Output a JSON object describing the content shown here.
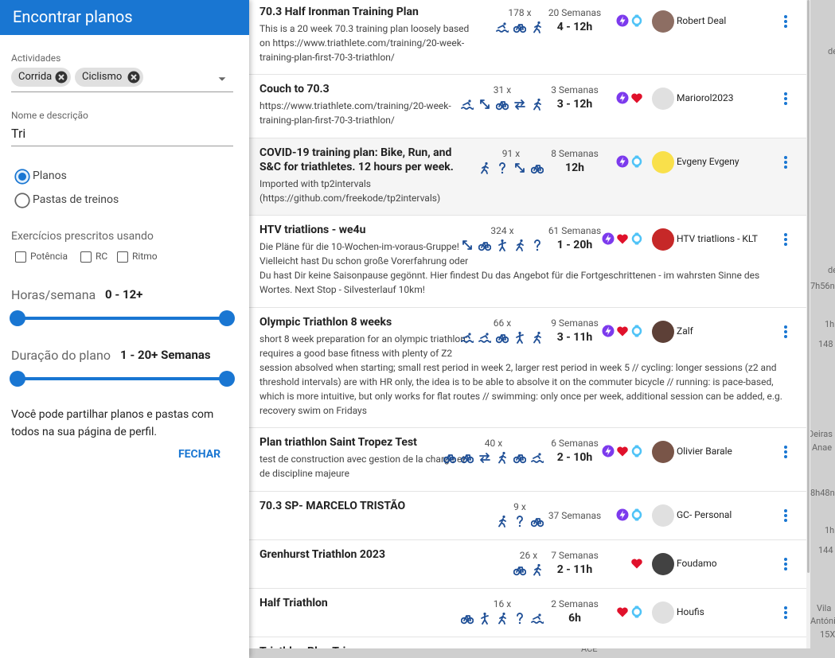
{
  "sidebar": {
    "title": "Encontrar planos",
    "activities_label": "Actividades",
    "chips": [
      "Corrida",
      "Ciclismo"
    ],
    "name_label": "Nome e descrição",
    "name_value": "Tri",
    "radios": [
      "Planos",
      "Pastas de treinos"
    ],
    "prescribed_label": "Exercícios prescritos usando",
    "checkboxes": [
      "Potência",
      "RC",
      "Ritmo"
    ],
    "hours_label": "Horas/semana",
    "hours_value": "0 - 12+",
    "duration_label": "Duração do plano",
    "duration_value": "1 - 20+ Semanas",
    "note": "Você pode partilhar planos e pastas com todos na sua página de perfil.",
    "close_button": "FECHAR"
  },
  "plans": [
    {
      "title": "70.3 Half Ironman Training Plan",
      "description": "This is a 20 week 70.3 training plan loosely based on https://www.triathlete.com/training/20-week-training-plan-first-70-3-triathlon/",
      "count": "178 x",
      "weeks": "20 Semanas",
      "hours": "4 - 12h",
      "author": "Robert Deal"
    },
    {
      "title": "Couch to 70.3",
      "description": "https://www.triathlete.com/training/20-week-training-plan-first-70-3-triathlon/",
      "count": "31 x",
      "weeks": "3 Semanas",
      "hours": "3 - 12h",
      "author": "Mariorol2023"
    },
    {
      "title": "COVID-19 training plan: Bike, Run, and S&C for triathletes. 12 hours per week.",
      "description": "Imported with tp2intervals (https://github.com/freekode/tp2intervals)",
      "count": "91 x",
      "weeks": "8 Semanas",
      "hours": "12h",
      "author": "Evgeny Evgeny"
    },
    {
      "title": "HTV triatlions - we4u",
      "description": "Die Pläne für die 10-Wochen-im-voraus-Gruppe! Vielleicht hast Du schon große Vorerfahrung oder Du hast Dir keine Saisonpause gegönnt. Hier findest Du das Angebot für die Fortgeschrittenen - im wahrsten Sinne des Wortes. Next Stop - Silvesterlauf 10km!",
      "count": "324 x",
      "weeks": "61 Semanas",
      "hours": "1 - 20h",
      "author": "HTV triatlions - KLT"
    },
    {
      "title": "Olympic Triathlon 8 weeks",
      "description": "short 8 week preparation for an olympic triathlon; requires a good base fitness with plenty of Z2 session absolved when starting; small rest period in week 2, larger rest period in week 5 // cycling: longer sessions (z2 and threshold intervals) are with HR only, the idea is to be able to absolve it on the commuter bicycle // running: is pace-based, which is more intuitive, but only works for flat routes // swimming: only once per week, additional session can be added, e.g. recovery swim on Fridays",
      "count": "66 x",
      "weeks": "9 Semanas",
      "hours": "3 - 11h",
      "author": "Zalf"
    },
    {
      "title": "Plan triathlon Saint Tropez Test",
      "description": "test de construction avec gestion de la charge et de discipline majeure",
      "count": "40 x",
      "weeks": "6 Semanas",
      "hours": "2 - 10h",
      "author": "Olivier Barale"
    },
    {
      "title": "70.3 SP- MARCELO TRISTÃO",
      "count": "9 x",
      "weeks": "37 Semanas",
      "author": "GC- Personal"
    },
    {
      "title": "Grenhurst Triathlon 2023",
      "count": "26 x",
      "weeks": "7 Semanas",
      "hours": "2 - 11h",
      "author": "Foudamo"
    },
    {
      "title": "Half Triathlon",
      "count": "16 x",
      "weeks": "2 Semanas",
      "hours": "6h",
      "author": "Houfis"
    },
    {
      "title": "Triathlon Plan Tri"
    }
  ],
  "background_fragments": [
    "de",
    "de",
    "7h56n",
    "1h",
    "148",
    "Deiras",
    "Anae",
    "8h48n",
    "1h",
    "144",
    "Vila",
    "Antóni",
    "15X",
    "ACE"
  ]
}
